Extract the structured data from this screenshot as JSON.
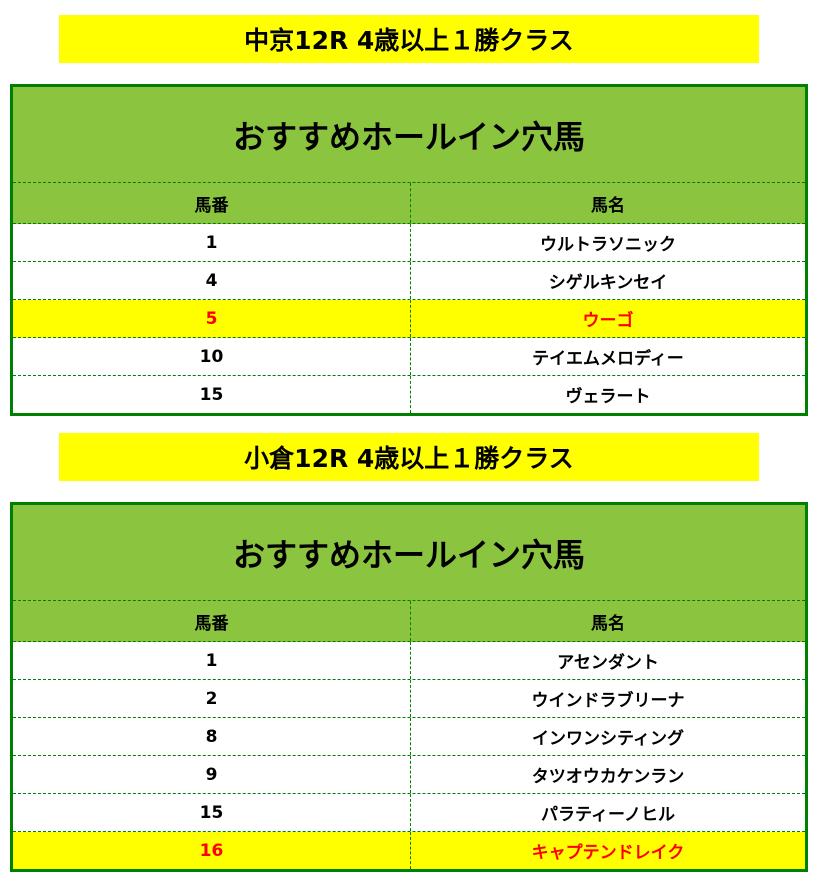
{
  "sections": [
    {
      "race": "中京12R 4歳以上１勝クラス",
      "title": "おすすめホールイン穴馬",
      "headers": [
        "馬番",
        "馬名"
      ],
      "rows": [
        {
          "num": "1",
          "name": "ウルトラソニック",
          "highlight": false
        },
        {
          "num": "4",
          "name": "シゲルキンセイ",
          "highlight": false
        },
        {
          "num": "5",
          "name": "ウーゴ",
          "highlight": true
        },
        {
          "num": "10",
          "name": "テイエムメロディー",
          "highlight": false
        },
        {
          "num": "15",
          "name": "ヴェラート",
          "highlight": false
        }
      ]
    },
    {
      "race": "小倉12R 4歳以上１勝クラス",
      "title": "おすすめホールイン穴馬",
      "headers": [
        "馬番",
        "馬名"
      ],
      "rows": [
        {
          "num": "1",
          "name": "アセンダント",
          "highlight": false
        },
        {
          "num": "2",
          "name": "ウインドラブリーナ",
          "highlight": false
        },
        {
          "num": "8",
          "name": "インワンシティング",
          "highlight": false
        },
        {
          "num": "9",
          "name": "タツオウカケンラン",
          "highlight": false
        },
        {
          "num": "15",
          "name": "パラティーノヒル",
          "highlight": false
        },
        {
          "num": "16",
          "name": "キャプテンドレイク",
          "highlight": true
        }
      ]
    }
  ],
  "colors": {
    "header_green": "#8bc43f",
    "border_green": "#008000",
    "highlight_yellow": "#ffff00",
    "highlight_text": "#ff0000"
  }
}
